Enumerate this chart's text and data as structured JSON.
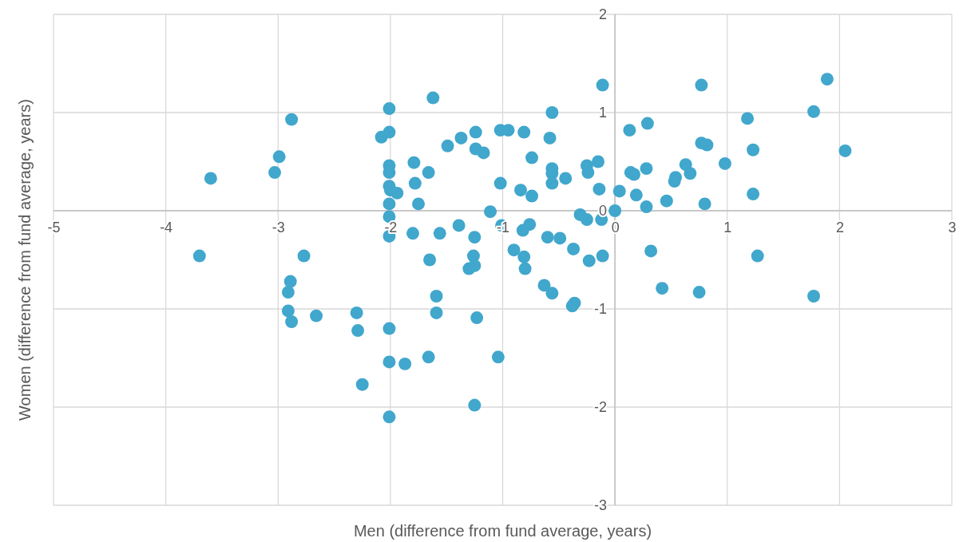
{
  "chart_data": {
    "type": "scatter",
    "xlabel": "Men (difference from fund average, years)",
    "ylabel": "Women (difference from fund average, years)",
    "xlim": [
      -5,
      3
    ],
    "xticks": [
      -5,
      -4,
      -3,
      -2,
      -1,
      0,
      1,
      2,
      3
    ],
    "ylim": [
      -3,
      2
    ],
    "yticks": [
      -3,
      -2,
      -1,
      0,
      1,
      2
    ],
    "grid": true,
    "marker": "circle",
    "series": [
      {
        "color": "#41a7cc",
        "x": [
          -3.6,
          -3.7,
          -2.88,
          -2.99,
          -3.03,
          -2.77,
          -2.89,
          -2.91,
          -2.91,
          -2.88,
          -2.66,
          -2.3,
          -2.29,
          -2.25,
          -2.01,
          -2.01,
          -2.01,
          -1.87,
          -1.66,
          -1.59,
          -1.59,
          -1.25,
          -1.23,
          -1.04,
          -1.62,
          -2.01,
          -2.08,
          -2.01,
          -1.49,
          -1.37,
          -1.24,
          -1.24,
          -1.17,
          -1.02,
          -0.95,
          -0.81,
          -0.56,
          -0.58,
          -0.11,
          -0.74,
          -2.01,
          -2.01,
          -1.79,
          -1.66,
          -1.78,
          -2.01,
          -2.0,
          -1.94,
          -2.01,
          -1.75,
          -2.01,
          -2.01,
          -1.8,
          -1.56,
          -1.39,
          -1.25,
          -1.11,
          -1.02,
          -0.84,
          -0.74,
          -0.56,
          -0.56,
          -0.56,
          -0.44,
          -0.25,
          -0.24,
          -0.15,
          -0.14,
          0.04,
          0.13,
          0.14,
          0.17,
          0.19,
          -1.01,
          -0.82,
          -0.76,
          -0.31,
          -0.25,
          -0.12,
          0,
          -0.6,
          -0.49,
          -0.37,
          -0.23,
          -0.11,
          -0.9,
          -0.81,
          -0.8,
          -1.26,
          -1.25,
          -1.3,
          -1.65,
          -0.63,
          -0.56,
          -0.38,
          -0.36,
          0.29,
          0.28,
          0.28,
          0.32,
          0.77,
          1.89,
          1.77,
          1.18,
          0.77,
          0.82,
          1.23,
          2.05,
          0.98,
          0.63,
          0.67,
          0.54,
          0.53,
          0.46,
          0.8,
          1.23,
          0.42,
          0.75,
          1.27,
          1.77
        ],
        "values": [
          0.33,
          -0.46,
          0.93,
          0.55,
          0.39,
          -0.46,
          -0.72,
          -0.83,
          -1.02,
          -1.13,
          -1.07,
          -1.04,
          -1.22,
          -1.77,
          -2.1,
          -1.54,
          -1.2,
          -1.56,
          -1.49,
          -1.04,
          -0.87,
          -1.98,
          -1.09,
          -1.49,
          1.15,
          1.04,
          0.75,
          0.8,
          0.66,
          0.74,
          0.8,
          0.63,
          0.59,
          0.82,
          0.82,
          0.8,
          1.0,
          0.74,
          1.28,
          0.54,
          0.46,
          0.39,
          0.49,
          0.39,
          0.28,
          0.25,
          0.21,
          0.18,
          0.07,
          0.07,
          -0.06,
          -0.26,
          -0.23,
          -0.23,
          -0.15,
          -0.27,
          -0.01,
          0.28,
          0.21,
          0.15,
          0.43,
          0.38,
          0.28,
          0.33,
          0.46,
          0.39,
          0.5,
          0.22,
          0.2,
          0.82,
          0.39,
          0.37,
          0.16,
          -0.15,
          -0.2,
          -0.14,
          -0.04,
          -0.09,
          -0.09,
          0,
          -0.27,
          -0.28,
          -0.39,
          -0.51,
          -0.46,
          -0.4,
          -0.47,
          -0.59,
          -0.46,
          -0.56,
          -0.59,
          -0.5,
          -0.76,
          -0.84,
          -0.97,
          -0.94,
          0.89,
          0.43,
          0.04,
          -0.41,
          1.28,
          1.34,
          1.01,
          0.94,
          0.69,
          0.67,
          0.62,
          0.61,
          0.48,
          0.47,
          0.38,
          0.34,
          0.3,
          0.1,
          0.07,
          0.17,
          -0.79,
          -0.83,
          -0.46,
          -0.87
        ]
      }
    ]
  }
}
